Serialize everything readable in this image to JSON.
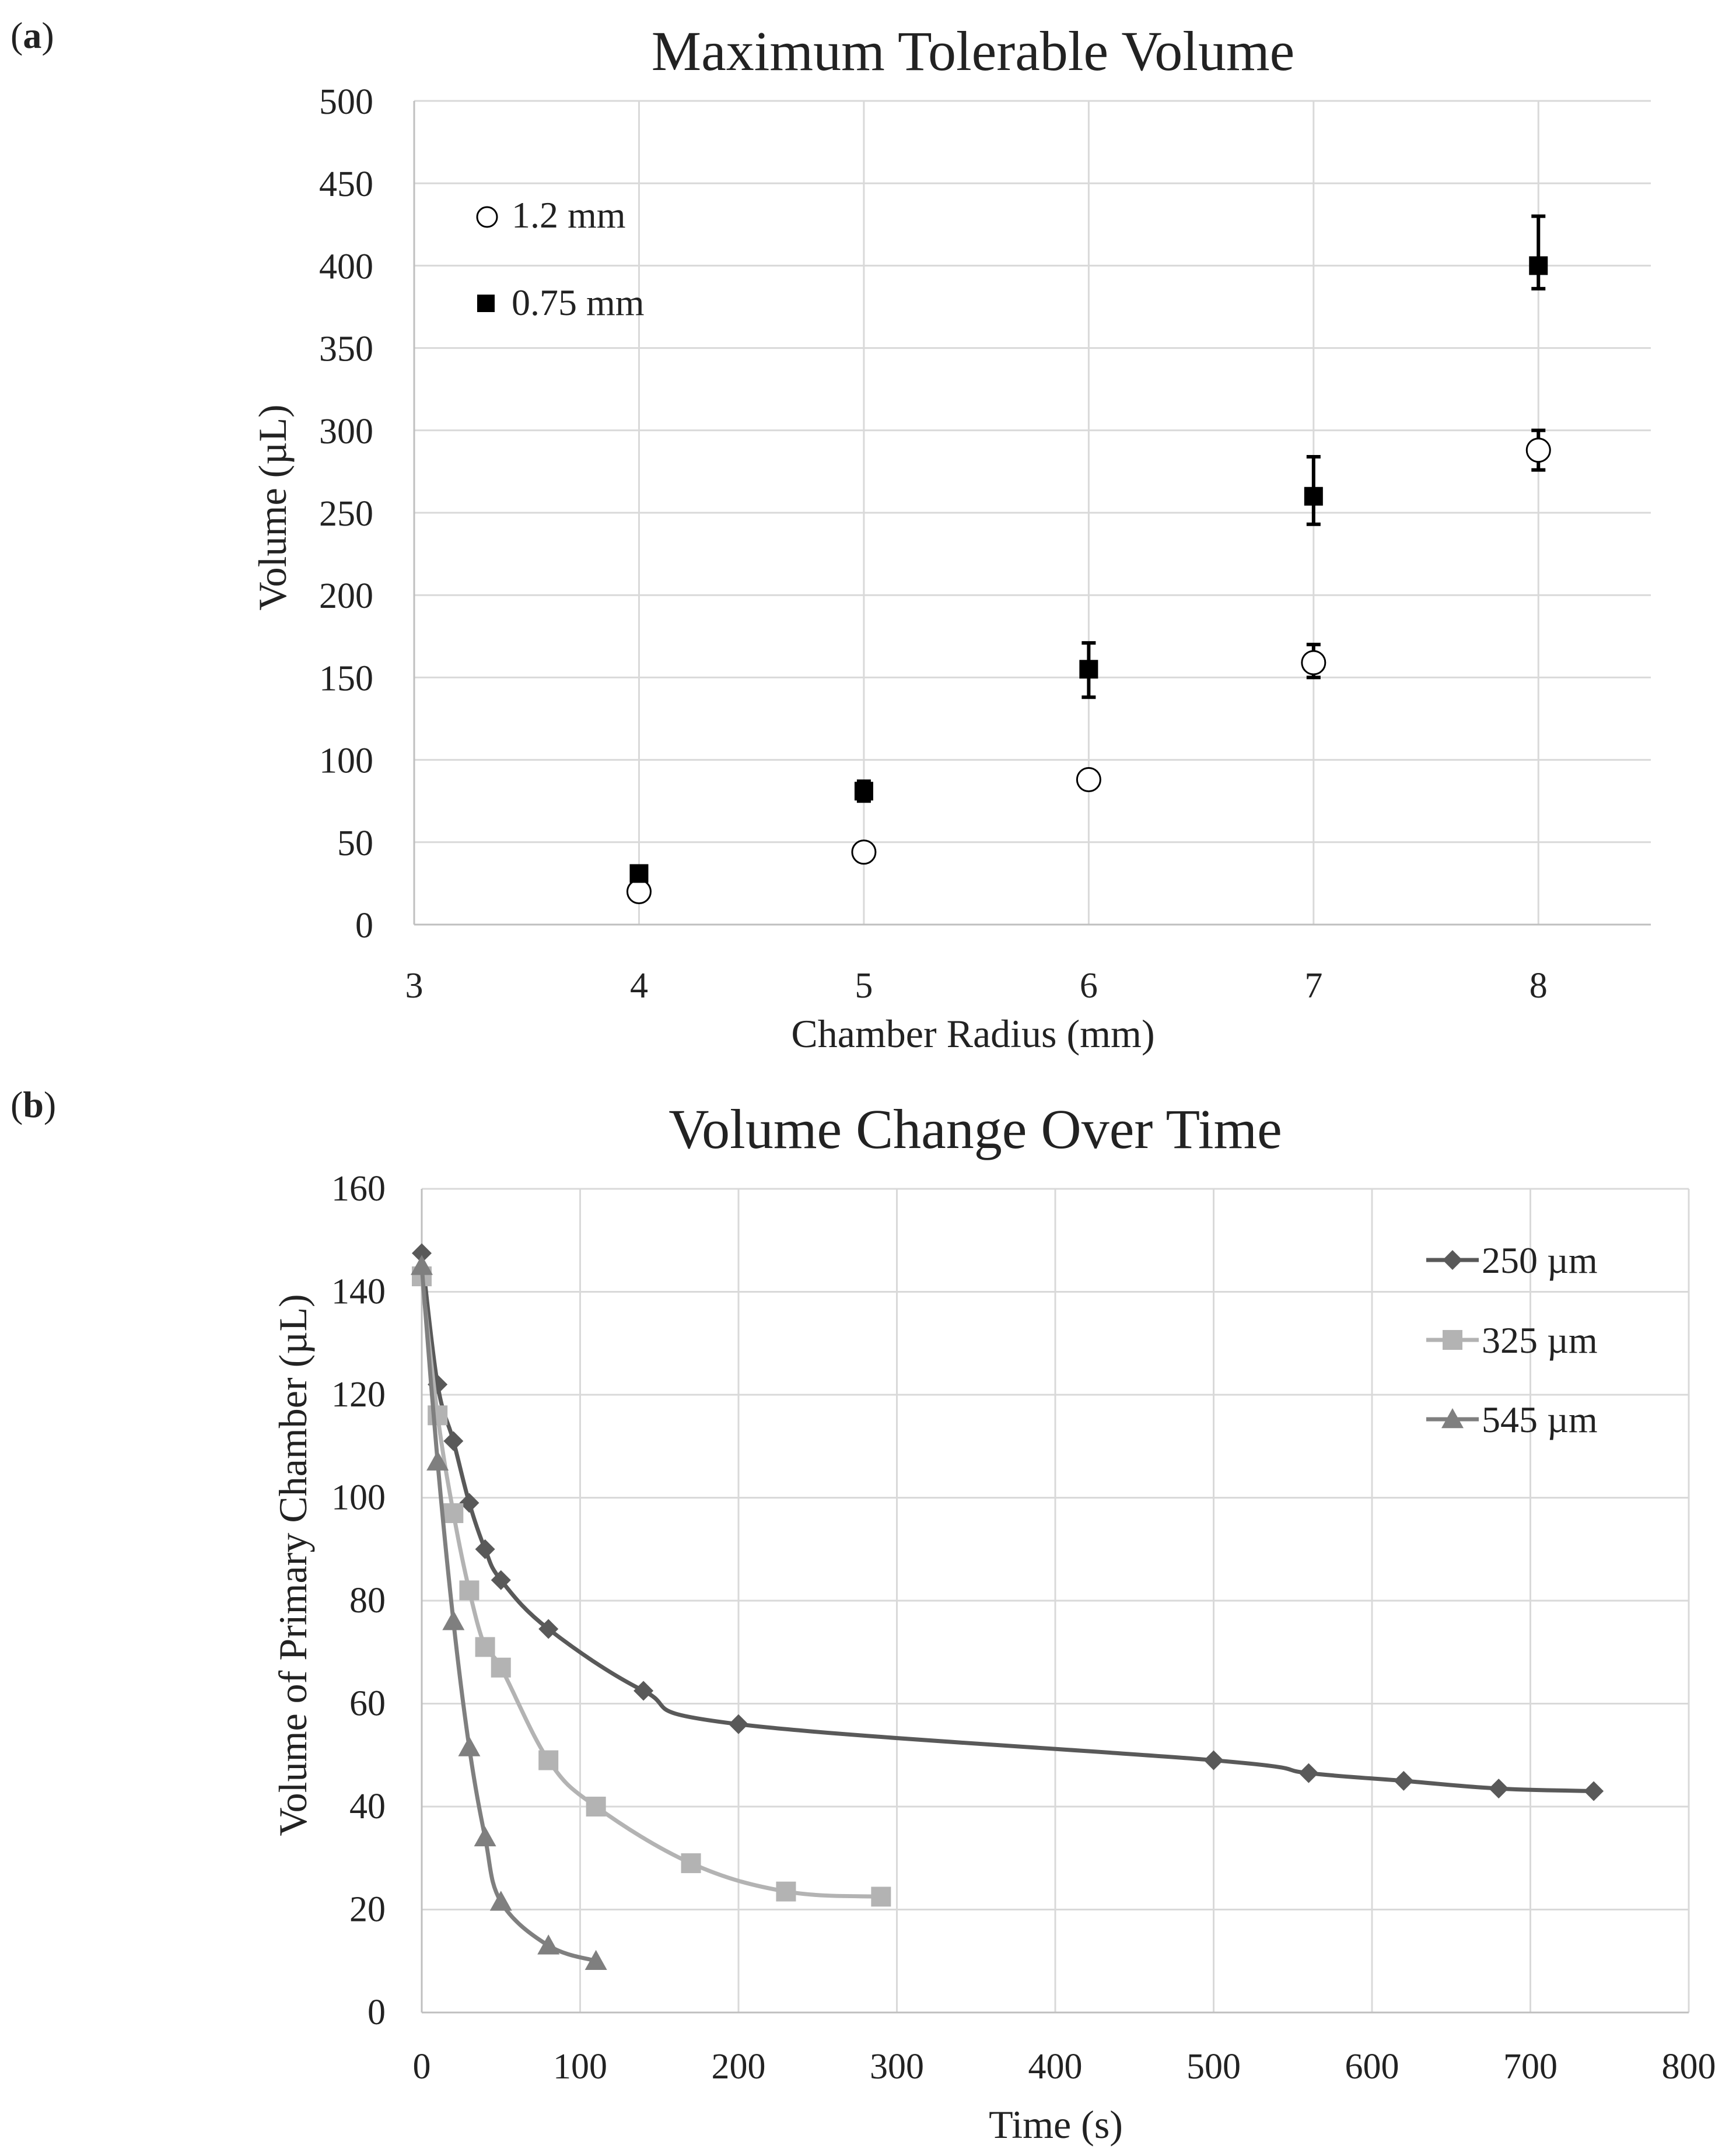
{
  "chart_data": [
    {
      "type": "scatter",
      "panel_label": "a",
      "title": "Maximum Tolerable Volume",
      "xlabel": "Chamber Radius (mm)",
      "ylabel": "Volume (µL)",
      "xlim": [
        3,
        8.5
      ],
      "ylim": [
        0,
        500
      ],
      "xticks": [
        "3",
        "4",
        "5",
        "6",
        "7",
        "8"
      ],
      "yticks": [
        "0",
        "50",
        "100",
        "150",
        "200",
        "250",
        "300",
        "350",
        "400",
        "450",
        "500"
      ],
      "grid": true,
      "legend_position": "top-left",
      "series": [
        {
          "name": "1.2 mm",
          "marker": "circle-open",
          "color": "#000000",
          "x": [
            4,
            5,
            6,
            7,
            8
          ],
          "y": [
            20,
            44,
            88,
            159,
            288
          ],
          "err_plus": [
            0,
            0,
            0,
            11,
            12
          ],
          "err_minus": [
            0,
            0,
            0,
            9,
            12
          ]
        },
        {
          "name": "0.75 mm",
          "marker": "square-filled",
          "color": "#000000",
          "x": [
            4,
            5,
            6,
            7,
            8
          ],
          "y": [
            31,
            81,
            155,
            260,
            400
          ],
          "err_plus": [
            3,
            6,
            16,
            24,
            30
          ],
          "err_minus": [
            3,
            6,
            17,
            17,
            14
          ]
        }
      ]
    },
    {
      "type": "line",
      "panel_label": "b",
      "title": "Volume Change Over Time",
      "xlabel": "Time (s)",
      "ylabel": "Volume of Primary Chamber (µL)",
      "xlim": [
        0,
        800
      ],
      "ylim": [
        0,
        160
      ],
      "xticks": [
        "0",
        "100",
        "200",
        "300",
        "400",
        "500",
        "600",
        "700",
        "800"
      ],
      "yticks": [
        "0",
        "20",
        "40",
        "60",
        "80",
        "100",
        "120",
        "140",
        "160"
      ],
      "grid": true,
      "legend_position": "top-right",
      "series": [
        {
          "name": "250 µm",
          "marker": "diamond",
          "color": "#595959",
          "x": [
            0,
            10,
            20,
            30,
            40,
            50,
            80,
            140,
            200,
            500,
            560,
            620,
            680,
            740
          ],
          "y": [
            147.5,
            122,
            111,
            99,
            90,
            84,
            74.5,
            62.5,
            56,
            49,
            46.5,
            45,
            43.5,
            43
          ]
        },
        {
          "name": "325 µm",
          "marker": "square",
          "color": "#b3b3b3",
          "x": [
            0,
            10,
            20,
            30,
            40,
            50,
            80,
            110,
            170,
            230,
            290
          ],
          "y": [
            143,
            116,
            97,
            82,
            71,
            67,
            49,
            40,
            29,
            23.5,
            22.5
          ]
        },
        {
          "name": "545 µm",
          "marker": "triangle",
          "color": "#7f7f7f",
          "x": [
            0,
            10,
            20,
            30,
            40,
            50,
            80,
            110
          ],
          "y": [
            145,
            107,
            76,
            51.5,
            34,
            21.5,
            13,
            10
          ]
        }
      ]
    }
  ]
}
